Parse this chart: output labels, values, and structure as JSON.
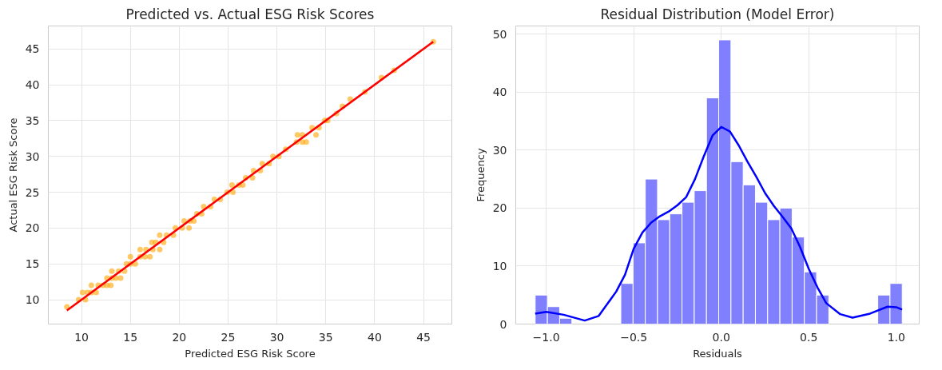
{
  "chart_data": [
    {
      "type": "scatter",
      "title": "Predicted vs. Actual ESG Risk Scores",
      "xlabel": "Predicted ESG Risk Score",
      "ylabel": "Actual ESG Risk Score",
      "xlim": [
        6.6,
        47.9
      ],
      "ylim": [
        6.6,
        48.2
      ],
      "xticks": [
        10,
        15,
        20,
        25,
        30,
        35,
        40,
        45
      ],
      "yticks": [
        10,
        15,
        20,
        25,
        30,
        35,
        40,
        45
      ],
      "grid": true,
      "series": [
        {
          "marker": "circle",
          "color": "#ffa500",
          "x": [
            8.5,
            9.7,
            10.4,
            10.1,
            10.6,
            11.0,
            11.5,
            11.0,
            11.7,
            12.2,
            12.6,
            13.0,
            12.6,
            13.1,
            13.5,
            14.0,
            13.1,
            13.8,
            14.4,
            14.6,
            15.0,
            15.5,
            15.0,
            16.0,
            16.5,
            17.0,
            16.0,
            16.6,
            17.3,
            18.0,
            17.2,
            17.6,
            18.4,
            18.0,
            18.7,
            19.4,
            19.6,
            20.3,
            21.0,
            20.5,
            21.1,
            21.5,
            21.8,
            22.3,
            22.5,
            23.2,
            23.6,
            24.2,
            24.9,
            25.5,
            25.4,
            26.1,
            26.5,
            26.8,
            27.5,
            27.6,
            28.3,
            28.5,
            29.2,
            29.6,
            30.2,
            30.9,
            32.0,
            32.6,
            33.0,
            32.1,
            32.6,
            33.6,
            34.3,
            34.0,
            34.9,
            35.2,
            36.1,
            36.7,
            37.5,
            39.0,
            40.7,
            42.0,
            46.0
          ],
          "values": [
            9,
            10,
            10,
            11,
            11,
            11,
            11,
            12,
            12,
            12,
            12,
            12,
            13,
            13,
            13,
            13,
            14,
            14,
            14,
            15,
            15,
            15,
            16,
            16,
            16,
            16,
            17,
            17,
            17,
            17,
            18,
            18,
            18,
            19,
            19,
            19,
            20,
            20,
            20,
            21,
            21,
            21,
            22,
            22,
            23,
            23,
            24,
            24,
            25,
            25,
            26,
            26,
            26,
            27,
            27,
            28,
            28,
            29,
            29,
            30,
            30,
            31,
            32,
            32,
            32,
            33,
            33,
            34,
            34,
            33,
            35,
            35,
            36,
            37,
            38,
            39,
            41,
            42,
            46
          ]
        },
        {
          "type": "line",
          "color": "#ff0000",
          "x": [
            8.5,
            46.0
          ],
          "values": [
            8.5,
            46.0
          ]
        }
      ]
    },
    {
      "type": "histogram",
      "title": "Residual Distribution (Model Error)",
      "xlabel": "Residuals",
      "ylabel": "Frequency",
      "xlim": [
        -1.174,
        1.131
      ],
      "ylim": [
        0,
        51.4
      ],
      "xticks": [
        {
          "value": -1.0,
          "label": "−1.0"
        },
        {
          "value": -0.5,
          "label": "−0.5"
        },
        {
          "value": 0.0,
          "label": "0.0"
        },
        {
          "value": 0.5,
          "label": "0.5"
        },
        {
          "value": 1.0,
          "label": "1.0"
        }
      ],
      "yticks": [
        0,
        10,
        20,
        30,
        40,
        50
      ],
      "grid": true,
      "series": [
        {
          "color": "#8080ff",
          "bins": [
            -1.063,
            -0.9931,
            -0.9232,
            -0.8533,
            -0.7834,
            -0.7135,
            -0.6436,
            -0.5737,
            -0.5038,
            -0.4339,
            -0.364,
            -0.2941,
            -0.2242,
            -0.1543,
            -0.0844,
            -0.0145,
            0.0554,
            0.1253,
            0.1952,
            0.2651,
            0.335,
            0.4049,
            0.4748,
            0.5447,
            0.6146,
            0.6845,
            0.7544,
            0.8243,
            0.8942,
            0.9641,
            1.034
          ],
          "values": [
            5,
            3,
            1,
            0,
            0,
            0,
            0,
            7,
            14,
            25,
            18,
            19,
            21,
            23,
            39,
            49,
            28,
            24,
            21,
            18,
            20,
            15,
            9,
            5,
            0,
            0,
            0,
            0,
            5,
            7
          ]
        },
        {
          "type": "line",
          "color": "#0000ff",
          "x": [
            -1.063,
            -1.0,
            -0.9,
            -0.78,
            -0.7,
            -0.6,
            -0.55,
            -0.5,
            -0.45,
            -0.4,
            -0.35,
            -0.3,
            -0.25,
            -0.2,
            -0.15,
            -0.1,
            -0.05,
            0.0,
            0.05,
            0.1,
            0.15,
            0.2,
            0.25,
            0.3,
            0.35,
            0.4,
            0.45,
            0.5,
            0.55,
            0.6,
            0.68,
            0.75,
            0.85,
            0.95,
            1.0,
            1.033
          ],
          "values": [
            1.8,
            2.1,
            1.6,
            0.6,
            1.4,
            5.6,
            8.5,
            13,
            15.8,
            17.5,
            18.6,
            19.4,
            20.5,
            21.9,
            25,
            28.9,
            32.5,
            34,
            33.2,
            30.8,
            28,
            25.4,
            22.6,
            20.4,
            18.5,
            16.5,
            13.3,
            9.5,
            6.3,
            3.6,
            1.7,
            1.1,
            1.8,
            3,
            2.9,
            2.5
          ]
        }
      ]
    }
  ]
}
